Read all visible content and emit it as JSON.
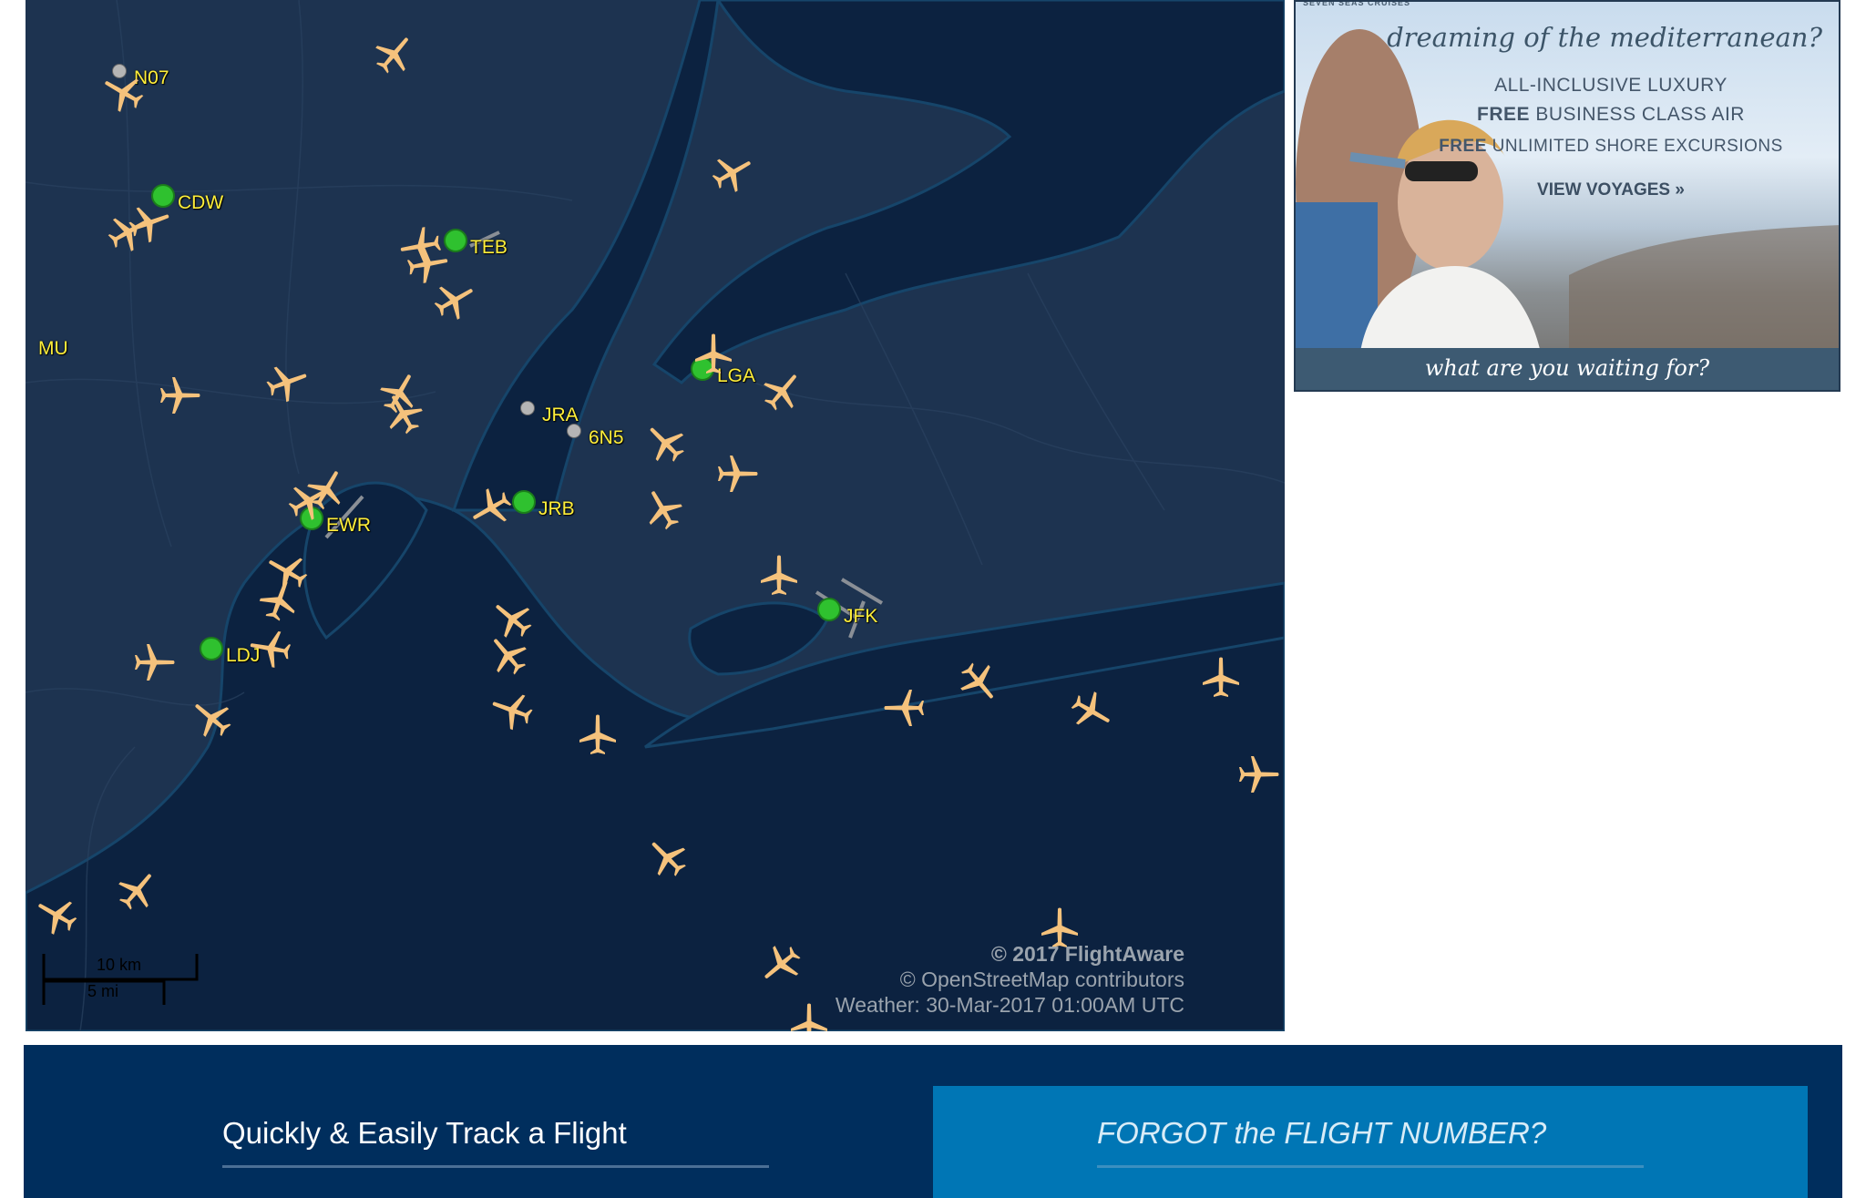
{
  "map": {
    "airports": [
      {
        "code": "N07",
        "type": "minor"
      },
      {
        "code": "CDW",
        "type": "major"
      },
      {
        "code": "TEB",
        "type": "major"
      },
      {
        "code": "MU",
        "type": "none"
      },
      {
        "code": "JRA",
        "type": "minor"
      },
      {
        "code": "6N5",
        "type": "minor"
      },
      {
        "code": "LGA",
        "type": "major"
      },
      {
        "code": "JRB",
        "type": "major"
      },
      {
        "code": "EWR",
        "type": "major"
      },
      {
        "code": "JFK",
        "type": "major"
      },
      {
        "code": "LDJ",
        "type": "major"
      }
    ],
    "scale": {
      "km": "10 km",
      "mi": "5 mi"
    },
    "copyright": "© 2017 FlightAware",
    "osm": "© OpenStreetMap contributors",
    "weather": "Weather: 30-Mar-2017 01:00AM UTC",
    "colors": {
      "land": "#1d3350",
      "water": "#0c2240",
      "plane": "#f5c27c",
      "airport": "#2fc12f",
      "label": "#ffef3a"
    }
  },
  "ad": {
    "brand": "SEVEN SEAS CRUISES",
    "headline": "dreaming of the mediterranean?",
    "line1": "ALL-INCLUSIVE LUXURY",
    "line2_bold": "FREE",
    "line2": "BUSINESS CLASS AIR",
    "line3_bold": "FREE",
    "line3": "UNLIMITED SHORE EXCURSIONS",
    "cta": "VIEW VOYAGES »",
    "footer": "what are you waiting for?"
  },
  "footer": {
    "track_title": "Quickly & Easily Track a Flight",
    "forgot_title": "FORGOT the FLIGHT NUMBER?"
  }
}
